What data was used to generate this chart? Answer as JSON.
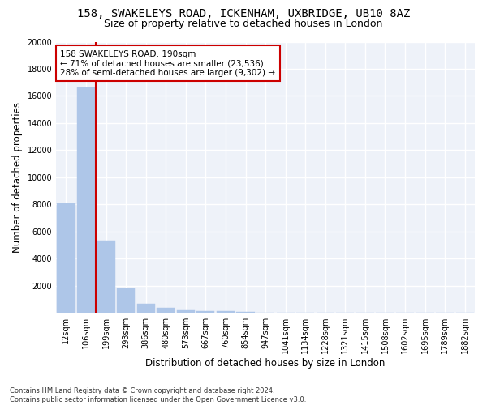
{
  "title": "158, SWAKELEYS ROAD, ICKENHAM, UXBRIDGE, UB10 8AZ",
  "subtitle": "Size of property relative to detached houses in London",
  "xlabel": "Distribution of detached houses by size in London",
  "ylabel": "Number of detached properties",
  "categories": [
    "12sqm",
    "106sqm",
    "199sqm",
    "293sqm",
    "386sqm",
    "480sqm",
    "573sqm",
    "667sqm",
    "760sqm",
    "854sqm",
    "947sqm",
    "1041sqm",
    "1134sqm",
    "1228sqm",
    "1321sqm",
    "1415sqm",
    "1508sqm",
    "1602sqm",
    "1695sqm",
    "1789sqm",
    "1882sqm"
  ],
  "values": [
    8100,
    16600,
    5300,
    1800,
    650,
    350,
    200,
    150,
    120,
    90,
    0,
    0,
    0,
    0,
    0,
    0,
    0,
    0,
    0,
    0,
    0
  ],
  "bar_color": "#aec6e8",
  "bar_edge_color": "#aec6e8",
  "vline_x": 1.5,
  "vline_color": "#cc0000",
  "annotation_text": "158 SWAKELEYS ROAD: 190sqm\n← 71% of detached houses are smaller (23,536)\n28% of semi-detached houses are larger (9,302) →",
  "annotation_box_color": "#cc0000",
  "background_color": "#eef2f9",
  "grid_color": "#ffffff",
  "ylim": [
    0,
    20000
  ],
  "yticks": [
    0,
    2000,
    4000,
    6000,
    8000,
    10000,
    12000,
    14000,
    16000,
    18000,
    20000
  ],
  "footnote": "Contains HM Land Registry data © Crown copyright and database right 2024.\nContains public sector information licensed under the Open Government Licence v3.0.",
  "title_fontsize": 10,
  "subtitle_fontsize": 9,
  "label_fontsize": 8.5,
  "tick_fontsize": 7,
  "annot_fontsize": 7.5
}
